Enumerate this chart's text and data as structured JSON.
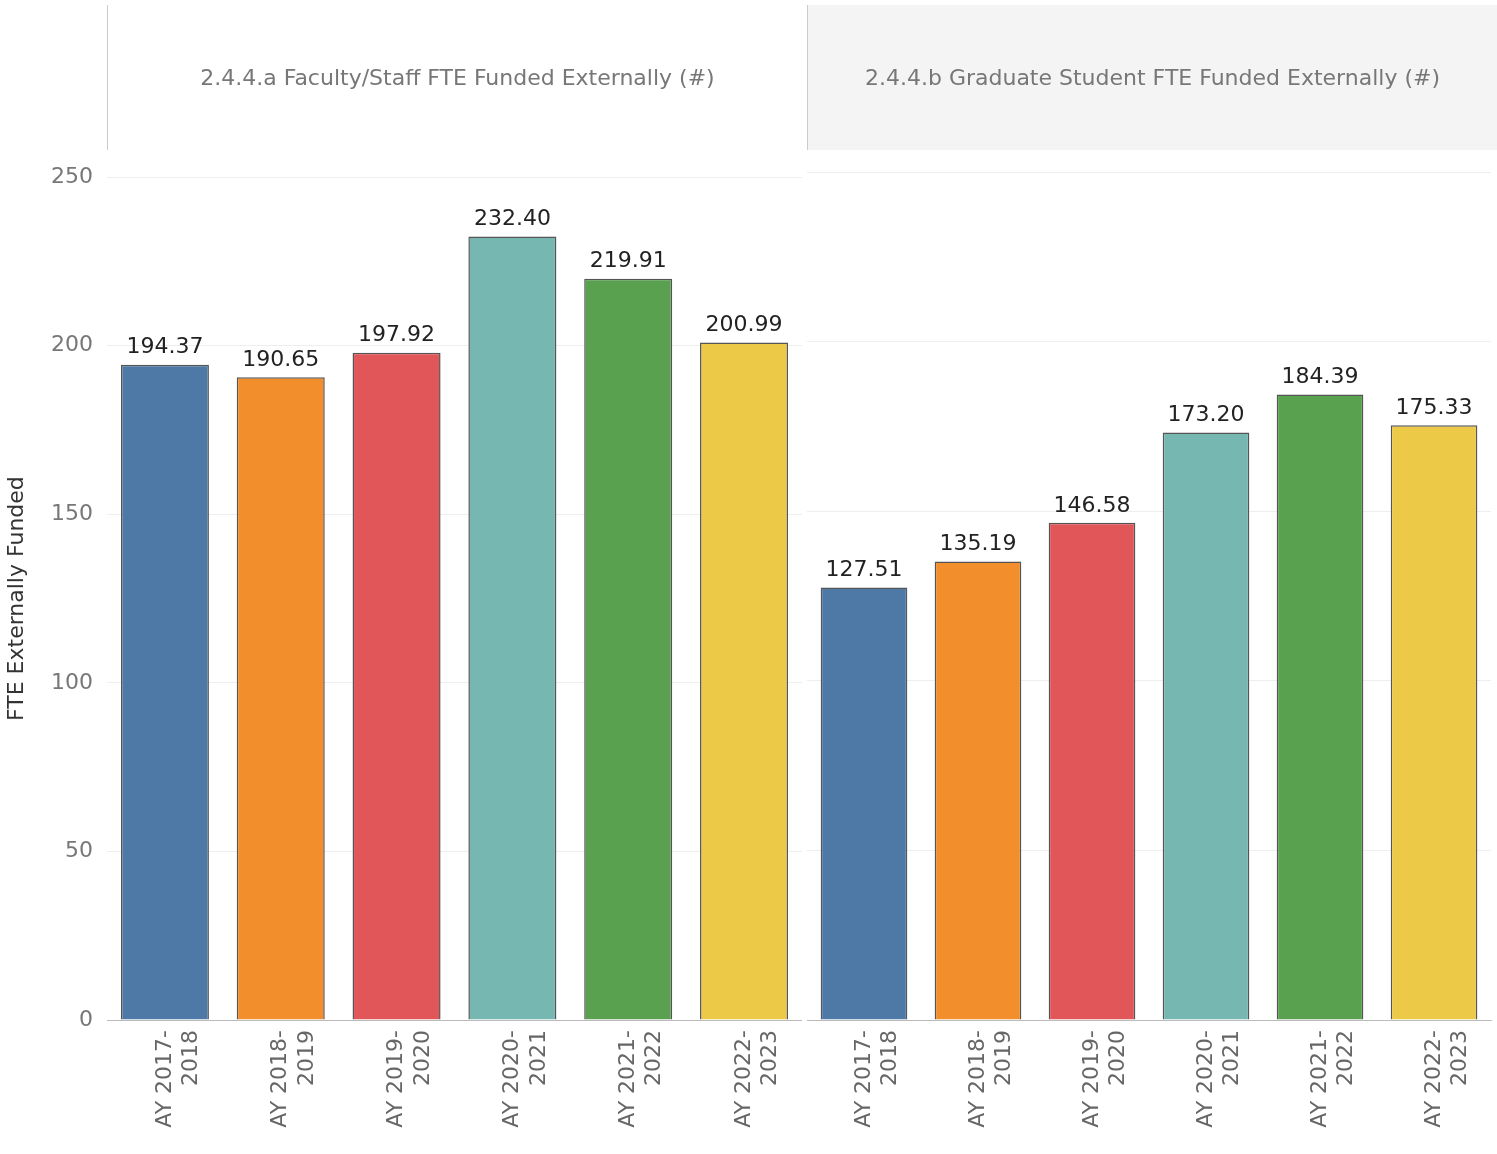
{
  "chart_data": [
    {
      "type": "bar",
      "title": "2.4.4.a Faculty/Staff FTE Funded Externally (#)",
      "ylabel": "FTE Externally Funded",
      "categories": [
        "AY 2017-2018",
        "AY 2018-2019",
        "AY 2019-2020",
        "AY 2020-2021",
        "AY 2021-2022",
        "AY 2022-2023"
      ],
      "values": [
        194.37,
        190.65,
        197.92,
        232.4,
        219.91,
        200.99
      ],
      "value_labels": [
        "194.37",
        "190.65",
        "197.92",
        "232.40",
        "219.91",
        "200.99"
      ],
      "colors": [
        "#4e79a7",
        "#f28e2b",
        "#e15759",
        "#76b7b2",
        "#59a14f",
        "#edc948"
      ],
      "ylim": [
        0,
        250
      ],
      "yticks": [
        0,
        50,
        100,
        150,
        200,
        250
      ],
      "grid": "y"
    },
    {
      "type": "bar",
      "title": "2.4.4.b Graduate Student FTE Funded Externally (#)",
      "categories": [
        "AY 2017-2018",
        "AY 2018-2019",
        "AY 2019-2020",
        "AY 2020-2021",
        "AY 2021-2022",
        "AY 2022-2023"
      ],
      "values": [
        127.51,
        135.19,
        146.58,
        173.2,
        184.39,
        175.33
      ],
      "value_labels": [
        "127.51",
        "135.19",
        "146.58",
        "173.20",
        "184.39",
        "175.33"
      ],
      "colors": [
        "#4e79a7",
        "#f28e2b",
        "#e15759",
        "#76b7b2",
        "#59a14f",
        "#edc948"
      ],
      "ylim": [
        0,
        250
      ],
      "yticks": [
        0,
        50,
        100,
        150,
        200,
        250
      ],
      "grid": "y",
      "tick_labels": "x"
    }
  ]
}
